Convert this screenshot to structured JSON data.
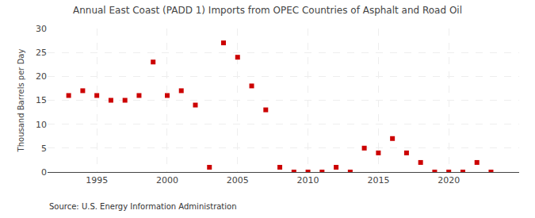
{
  "chart_data": {
    "type": "scatter",
    "title": "Annual East Coast (PADD 1) Imports from OPEC Countries of Asphalt and Road Oil",
    "ylabel": "Thousand Barrels per Day",
    "annotation": "Source: U.S. Energy Information Administration",
    "x": [
      1993,
      1994,
      1995,
      1996,
      1997,
      1998,
      1999,
      2000,
      2001,
      2002,
      2003,
      2004,
      2005,
      2006,
      2007,
      2008,
      2009,
      2010,
      2011,
      2012,
      2013,
      2014,
      2015,
      2016,
      2017,
      2018,
      2019,
      2020,
      2021,
      2022,
      2023
    ],
    "values": [
      16,
      17,
      16,
      15,
      15,
      16,
      23,
      16,
      17,
      14,
      1,
      27,
      24,
      18,
      13,
      1,
      0,
      0,
      0,
      1,
      0,
      5,
      4,
      7,
      4,
      2,
      0,
      0,
      0,
      2,
      0
    ],
    "color": "#cc0000",
    "marker": "square",
    "xlim": [
      1991.5,
      2025
    ],
    "xticks": [
      1995,
      2000,
      2005,
      2010,
      2015,
      2020
    ],
    "ylim": [
      0,
      30
    ],
    "yticks": [
      0,
      5,
      10,
      15,
      20,
      25,
      30
    ],
    "grid": true
  }
}
